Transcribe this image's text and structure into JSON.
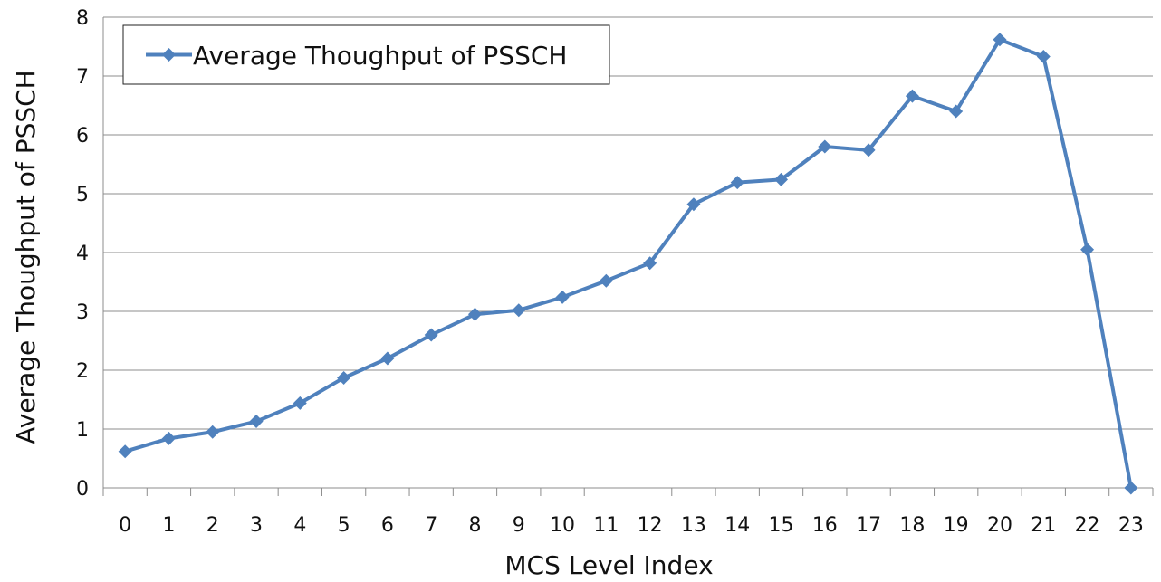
{
  "chart_data": {
    "type": "line",
    "title": "",
    "xlabel": "MCS Level Index",
    "ylabel": "Average Thoughput of PSSCH",
    "ylim": [
      0,
      8
    ],
    "yticks": [
      0,
      1,
      2,
      3,
      4,
      5,
      6,
      7,
      8
    ],
    "grid": true,
    "legend_position": "top-left",
    "x": [
      0,
      1,
      2,
      3,
      4,
      5,
      6,
      7,
      8,
      9,
      10,
      11,
      12,
      13,
      14,
      15,
      16,
      17,
      18,
      19,
      20,
      21,
      22,
      23
    ],
    "series": [
      {
        "name": "Average Thoughput of PSSCH",
        "color": "#4f81bd",
        "values": [
          0.62,
          0.84,
          0.95,
          1.13,
          1.44,
          1.87,
          2.2,
          2.6,
          2.95,
          3.02,
          3.24,
          3.52,
          3.82,
          4.82,
          5.19,
          5.24,
          5.8,
          5.74,
          6.66,
          6.4,
          7.62,
          7.33,
          4.05,
          0.0
        ]
      }
    ]
  }
}
